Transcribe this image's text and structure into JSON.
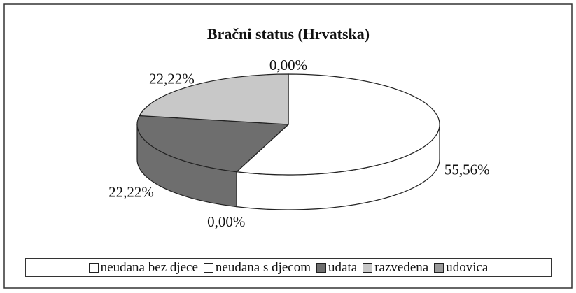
{
  "chart_data": {
    "type": "pie",
    "title": "Bračni status (Hrvatska)",
    "categories": [
      "neudana bez djece",
      "neudana s djecom",
      "udata",
      "razvedena",
      "udovica"
    ],
    "values": [
      55.56,
      0,
      22.22,
      22.22,
      0
    ],
    "value_labels": [
      "55,56%",
      "0,00%",
      "22,22%",
      "22,22%",
      "0,00%"
    ],
    "colors": [
      "#ffffff",
      "#ffffff",
      "#6e6e6e",
      "#c8c8c8",
      "#9a9a9a"
    ],
    "legend": "bottom"
  }
}
